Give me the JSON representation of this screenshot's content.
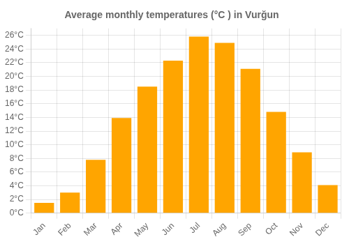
{
  "chart_data": {
    "type": "bar",
    "title": "Average monthly temperatures (°C ) in Vurğun",
    "categories": [
      "Jan",
      "Feb",
      "Mar",
      "Apr",
      "May",
      "Jun",
      "Jul",
      "Aug",
      "Sep",
      "Oct",
      "Nov",
      "Dec"
    ],
    "values": [
      1.5,
      3.0,
      7.8,
      13.9,
      18.5,
      22.3,
      25.8,
      24.9,
      21.1,
      14.8,
      8.9,
      4.1
    ],
    "color": "#FFA500",
    "ylim": [
      0,
      27
    ],
    "yticks": [
      {
        "value": 0,
        "label": "0°C"
      },
      {
        "value": 2,
        "label": "2°C"
      },
      {
        "value": 4,
        "label": "4°C"
      },
      {
        "value": 6,
        "label": "6°C"
      },
      {
        "value": 8,
        "label": "8°C"
      },
      {
        "value": 10,
        "label": "10°C"
      },
      {
        "value": 12,
        "label": "12°C"
      },
      {
        "value": 14,
        "label": "14°C"
      },
      {
        "value": 16,
        "label": "16°C"
      },
      {
        "value": 18,
        "label": "18°C"
      },
      {
        "value": 20,
        "label": "20°C"
      },
      {
        "value": 22,
        "label": "22°C"
      },
      {
        "value": 24,
        "label": "24°C"
      },
      {
        "value": 26,
        "label": "26°C"
      }
    ],
    "grid": true
  }
}
